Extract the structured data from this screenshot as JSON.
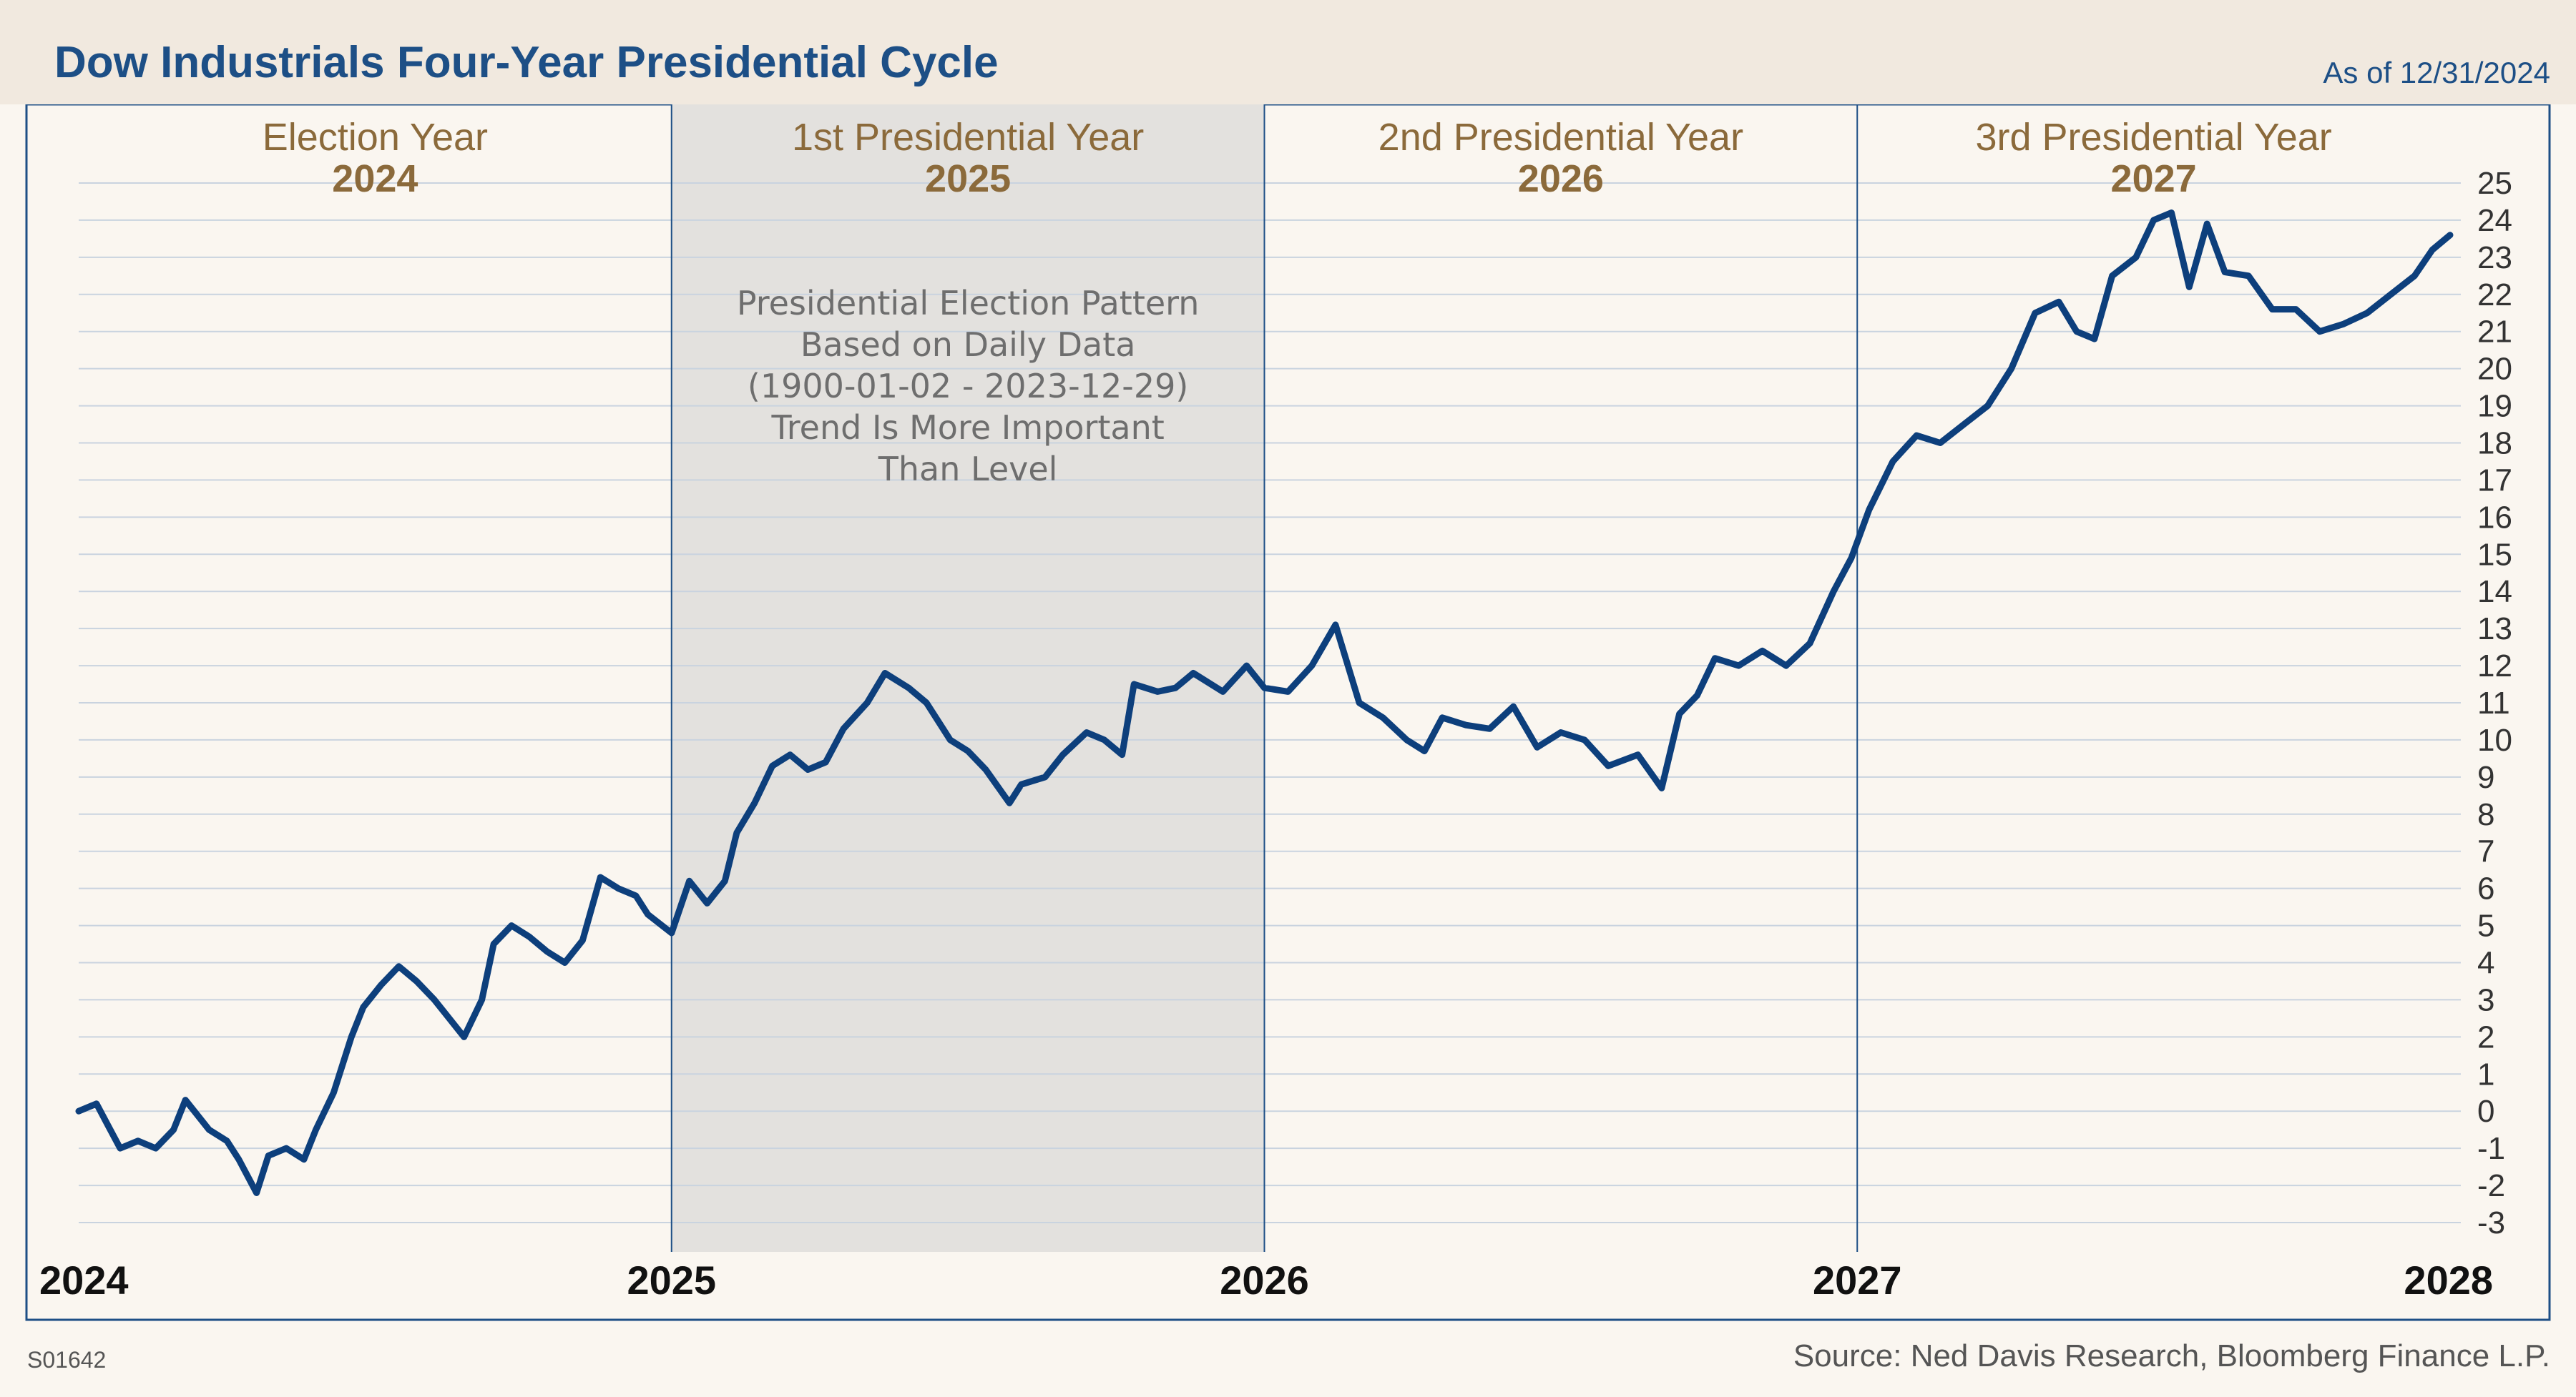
{
  "header": {
    "title": "Dow Industrials Four-Year Presidential Cycle",
    "as_of": "As of 12/31/2024"
  },
  "footer": {
    "chart_id": "S01642",
    "source": "Source: Ned Davis Research, Bloomberg Finance L.P."
  },
  "colors": {
    "line": "#0d3f7c",
    "header_bg": "#f1e9df",
    "page_bg": "#faf6f0",
    "shade": "#e3e1de",
    "year_label": "#8b6a3b",
    "title": "#1d4f86"
  },
  "chart_data": {
    "type": "line",
    "title": "Dow Industrials Four-Year Presidential Cycle",
    "xlabel": "",
    "ylabel": "",
    "xlim": [
      2024,
      2028
    ],
    "ylim": [
      -3,
      25
    ],
    "y_ticks": [
      "-3",
      "-2",
      "-1",
      "0",
      "1",
      "2",
      "3",
      "4",
      "5",
      "6",
      "7",
      "8",
      "9",
      "10",
      "11",
      "12",
      "13",
      "14",
      "15",
      "16",
      "17",
      "18",
      "19",
      "20",
      "21",
      "22",
      "23",
      "24",
      "25"
    ],
    "x_ticks": [
      "2024",
      "2025",
      "2026",
      "2027",
      "2028"
    ],
    "grid": true,
    "y_axis_side": "right",
    "shaded_region": {
      "from": 2025,
      "to": 2026
    },
    "period_labels": [
      {
        "name": "Election Year",
        "year": "2024"
      },
      {
        "name": "1st Presidential Year",
        "year": "2025"
      },
      {
        "name": "2nd Presidential Year",
        "year": "2026"
      },
      {
        "name": "3rd Presidential Year",
        "year": "2027"
      }
    ],
    "annotation": [
      "Presidential Election Pattern",
      "Based on Daily Data",
      "(1900-01-02 - 2023-12-29)",
      "Trend Is More Important",
      "Than Level"
    ],
    "series": [
      {
        "x": [
          2024.0,
          2024.03,
          2024.05,
          2024.07,
          2024.1,
          2024.13,
          2024.16,
          2024.18,
          2024.22,
          2024.25,
          2024.27,
          2024.3,
          2024.32,
          2024.35,
          2024.38,
          2024.4,
          2024.43,
          2024.46,
          2024.48,
          2024.51,
          2024.54,
          2024.57,
          2024.6,
          2024.62,
          2024.65,
          2024.68,
          2024.7,
          2024.73,
          2024.76,
          2024.79,
          2024.82,
          2024.85,
          2024.88,
          2024.91,
          2024.94,
          2024.96,
          2025.0,
          2025.03,
          2025.06,
          2025.09,
          2025.11,
          2025.14,
          2025.17,
          2025.2,
          2025.23,
          2025.26,
          2025.29,
          2025.33,
          2025.36,
          2025.4,
          2025.43,
          2025.47,
          2025.5,
          2025.53,
          2025.57,
          2025.59,
          2025.63,
          2025.66,
          2025.7,
          2025.73,
          2025.76,
          2025.78,
          2025.82,
          2025.85,
          2025.88,
          2025.93,
          2025.97,
          2026.0,
          2026.04,
          2026.08,
          2026.12,
          2026.16,
          2026.2,
          2026.24,
          2026.27,
          2026.3,
          2026.34,
          2026.38,
          2026.42,
          2026.46,
          2026.5,
          2026.54,
          2026.58,
          2026.63,
          2026.67,
          2026.7,
          2026.73,
          2026.76,
          2026.8,
          2026.84,
          2026.88,
          2026.92,
          2026.96,
          2026.99,
          2027.02,
          2027.06,
          2027.1,
          2027.14,
          2027.18,
          2027.22,
          2027.26,
          2027.3,
          2027.34,
          2027.37,
          2027.4,
          2027.43,
          2027.47,
          2027.5,
          2027.53,
          2027.56,
          2027.59,
          2027.62,
          2027.66,
          2027.7,
          2027.74,
          2027.78,
          2027.82,
          2027.86,
          2027.9,
          2027.94,
          2027.97,
          2028.0
        ],
        "values": [
          0.0,
          0.2,
          -0.4,
          -1.0,
          -0.8,
          -1.0,
          -0.5,
          0.3,
          -0.5,
          -0.8,
          -1.3,
          -2.2,
          -1.2,
          -1.0,
          -1.3,
          -0.5,
          0.5,
          2.0,
          2.8,
          3.4,
          3.9,
          3.5,
          3.0,
          2.6,
          2.0,
          3.0,
          4.5,
          5.0,
          4.7,
          4.3,
          4.0,
          4.6,
          6.3,
          6.0,
          5.8,
          5.3,
          4.8,
          6.2,
          5.6,
          6.2,
          7.5,
          8.3,
          9.3,
          9.6,
          9.2,
          9.4,
          10.3,
          11.0,
          11.8,
          11.4,
          11.0,
          10.0,
          9.7,
          9.2,
          8.3,
          8.8,
          9.0,
          9.6,
          10.2,
          10.0,
          9.6,
          11.5,
          11.3,
          11.4,
          11.8,
          11.3,
          12.0,
          11.4,
          11.3,
          12.0,
          13.1,
          11.0,
          10.6,
          10.0,
          9.7,
          10.6,
          10.4,
          10.3,
          10.9,
          9.8,
          10.2,
          10.0,
          9.3,
          9.6,
          8.7,
          10.7,
          11.2,
          12.2,
          12.0,
          12.4,
          12.0,
          12.6,
          14.0,
          14.9,
          16.2,
          17.5,
          18.2,
          18.0,
          18.5,
          19.0,
          20.0,
          21.5,
          21.8,
          21.0,
          20.8,
          22.5,
          23.0,
          24.0,
          24.2,
          22.2,
          23.9,
          22.6,
          22.5,
          21.6,
          21.6,
          21.0,
          21.2,
          21.5,
          22.0,
          22.5,
          23.2,
          23.6
        ]
      }
    ]
  }
}
